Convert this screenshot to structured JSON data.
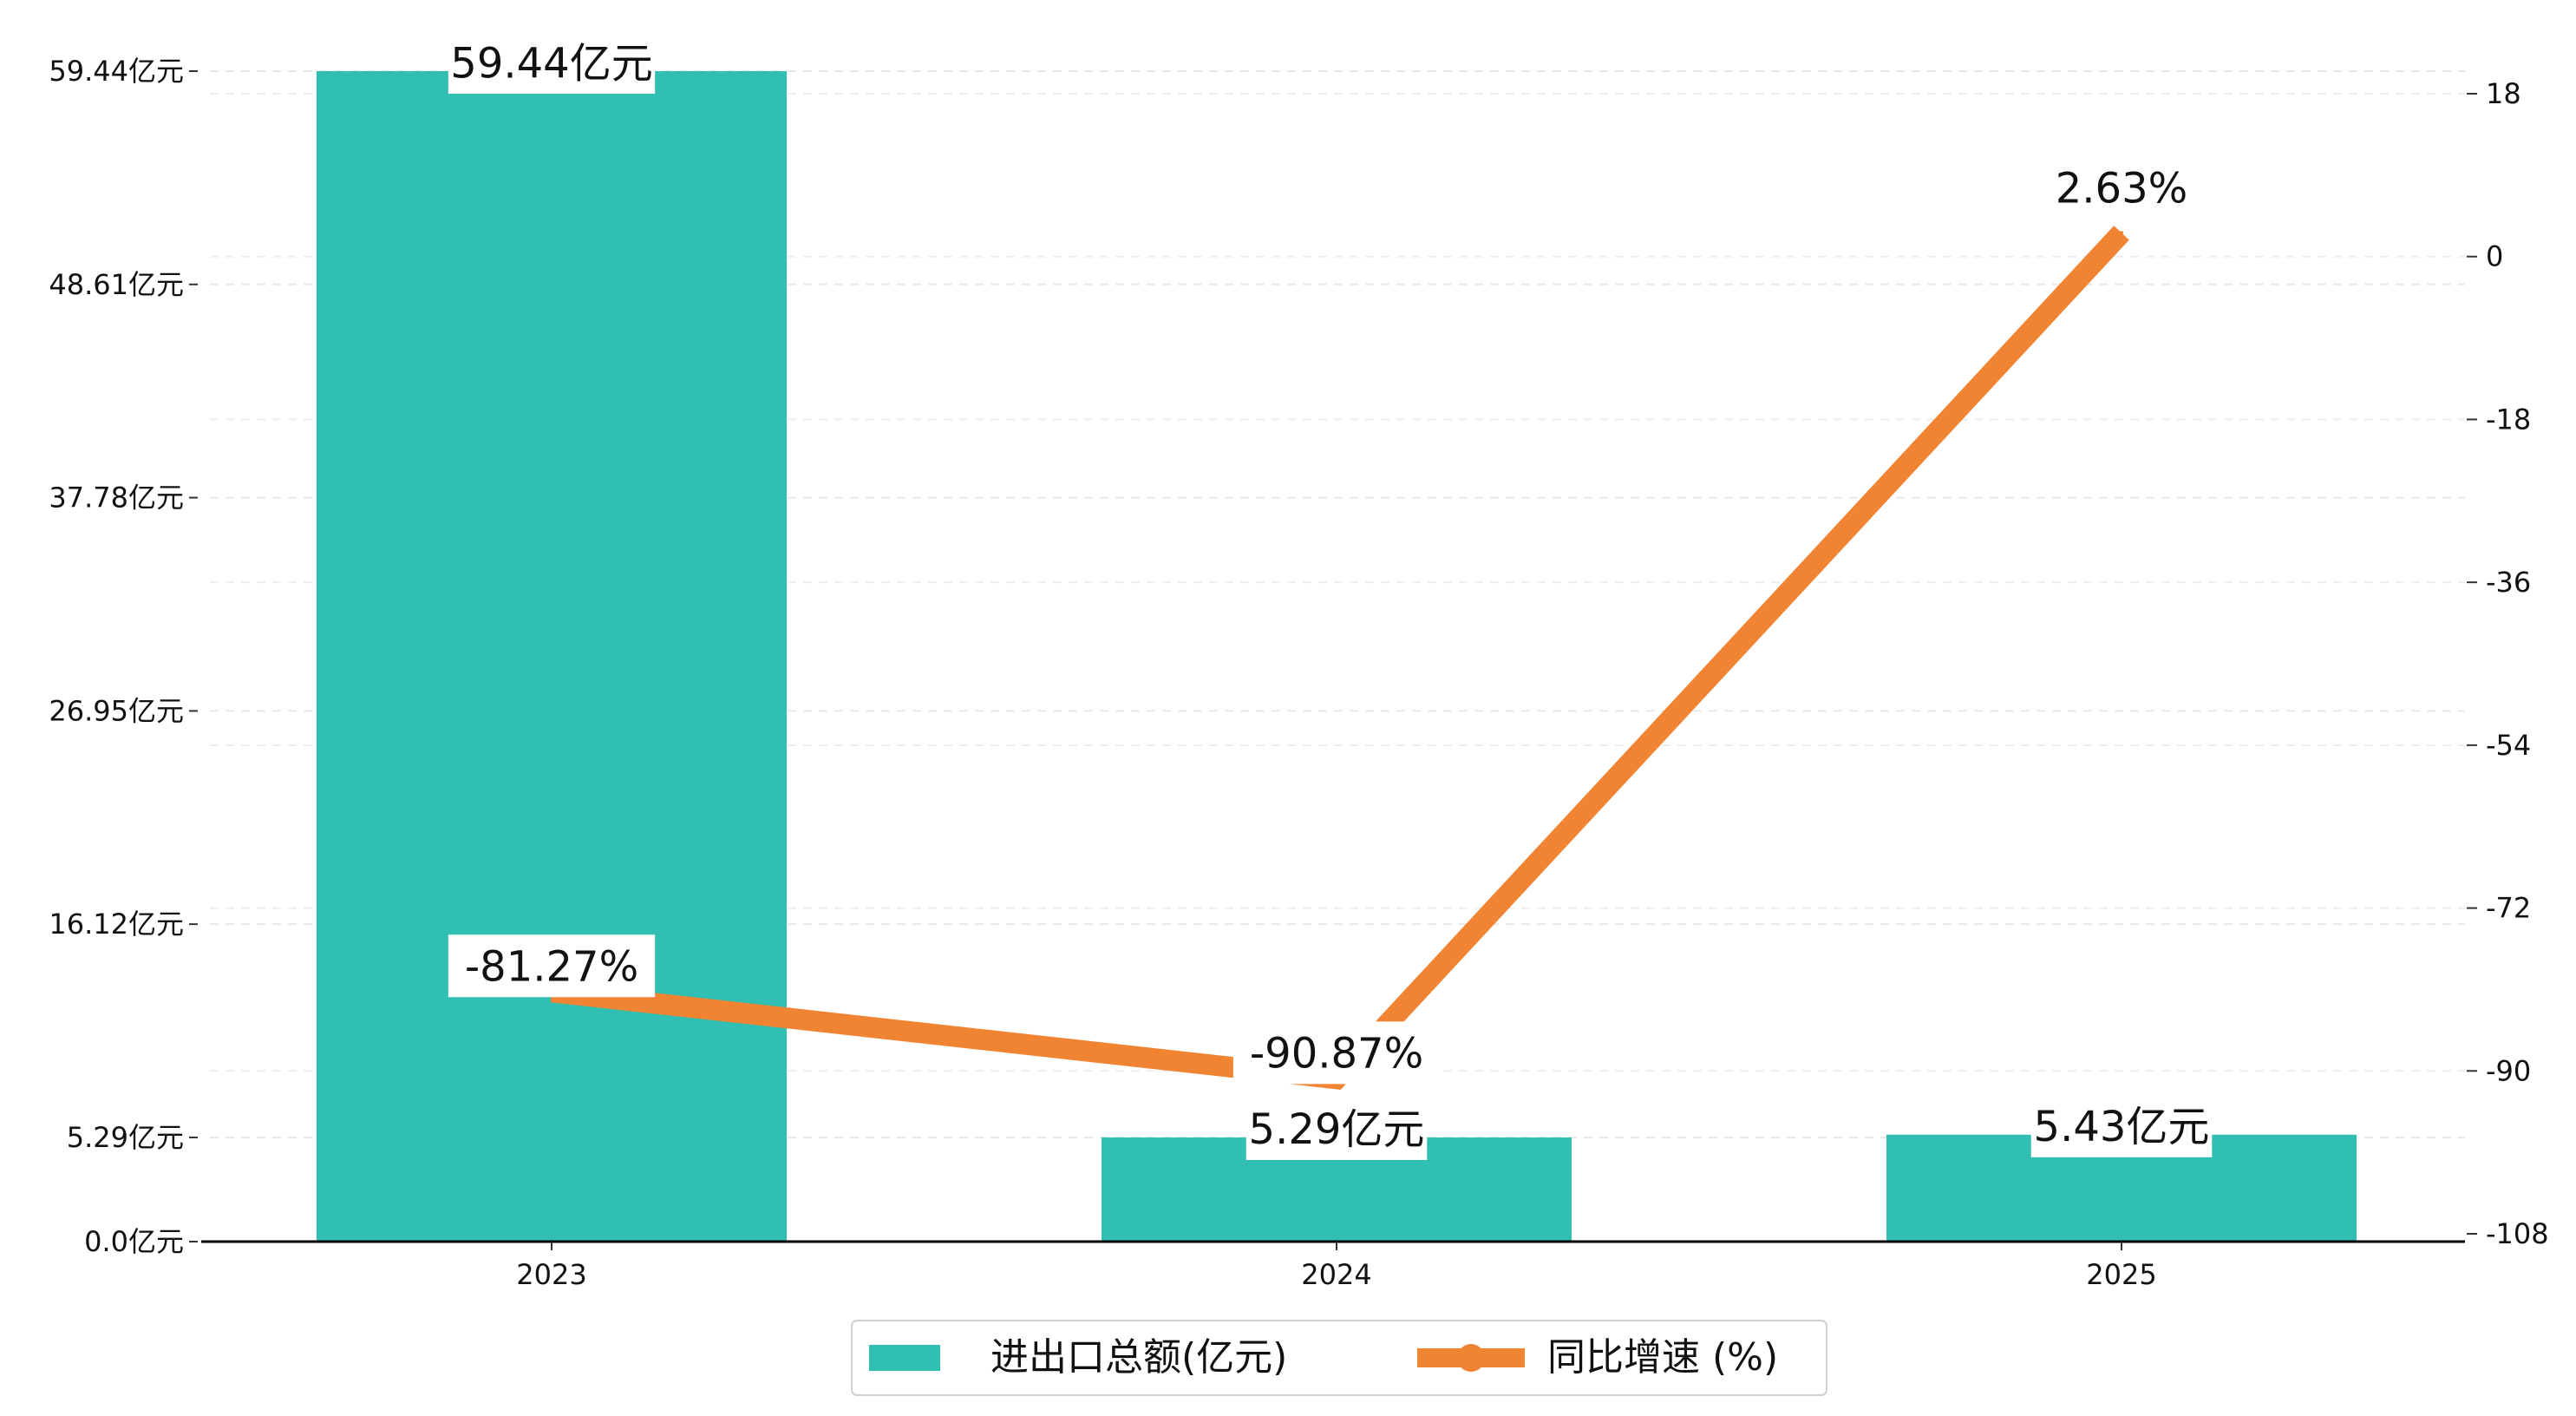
{
  "chart_data": {
    "type": "bar",
    "categories": [
      "2023",
      "2024",
      "2025"
    ],
    "series": [
      {
        "name": "进出口总额(亿元)",
        "type": "bar",
        "axis": "left",
        "values": [
          59.44,
          5.29,
          5.43
        ],
        "labels": [
          "59.44亿元",
          "5.29亿元",
          "5.43亿元"
        ],
        "color": "#30BFB2"
      },
      {
        "name": "同比增速 (%)",
        "type": "line",
        "axis": "right",
        "values": [
          -81.27,
          -90.87,
          2.63
        ],
        "labels": [
          "-81.27%",
          "-90.87%",
          "2.63%"
        ],
        "color": "#F08432"
      }
    ],
    "left_axis": {
      "ylim": [
        0,
        59.44
      ],
      "ticks": [
        0,
        5.29,
        16.12,
        26.95,
        37.78,
        48.61,
        59.44
      ],
      "tick_labels": [
        "0.0亿元",
        "5.29亿元",
        "16.12亿元",
        "26.95亿元",
        "37.78亿元",
        "48.61亿元",
        "59.44亿元"
      ]
    },
    "right_axis": {
      "ylim": [
        -108,
        28
      ],
      "ticks": [
        -108,
        -90,
        -72,
        -54,
        -36,
        -18,
        0,
        18
      ],
      "tick_labels": [
        "-108",
        "-90",
        "-72",
        "-54",
        "-36",
        "-18",
        "0",
        "18"
      ]
    },
    "grid": true,
    "legend_position": "bottom-center"
  }
}
